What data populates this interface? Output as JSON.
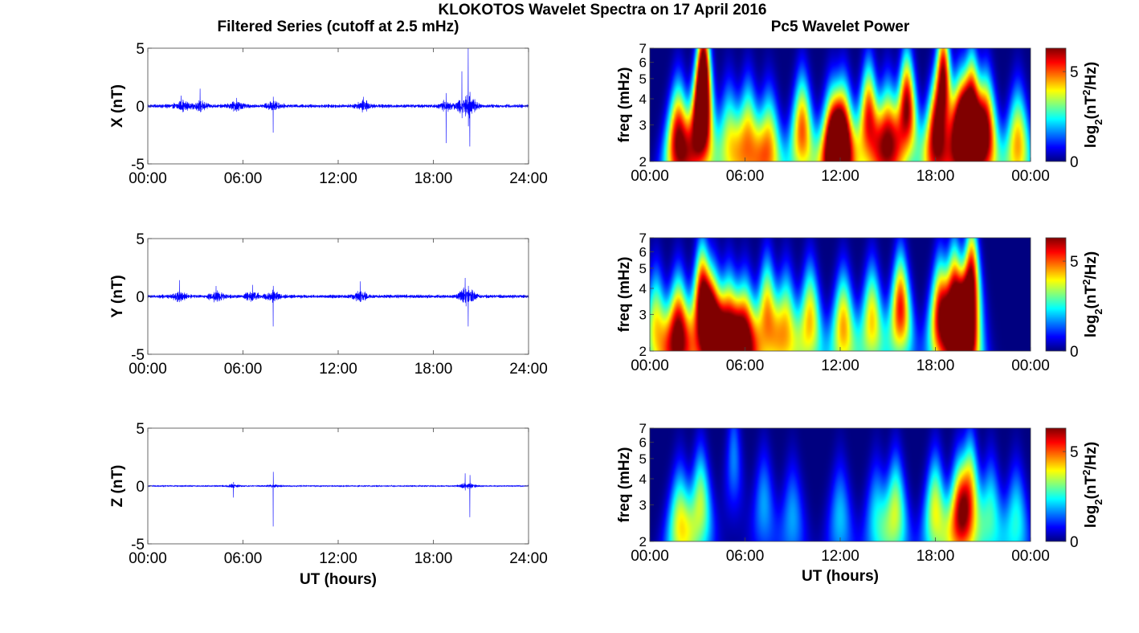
{
  "figure": {
    "title": "KLOKOTOS Wavelet Spectra on 17 April 2016",
    "left_column_title": "Filtered Series (cutoff at 2.5 mHz)",
    "right_column_title": "Pc5 Wavelet Power",
    "bottom_xlabel": "UT (hours)"
  },
  "chart_data": [
    {
      "type": "line",
      "panel": "X",
      "ylabel": "X (nT)",
      "xlim": [
        0,
        24
      ],
      "ylim": [
        -5,
        5
      ],
      "yticks": [
        -5,
        0,
        5
      ],
      "xtick_labels": [
        "00:00",
        "06:00",
        "12:00",
        "18:00",
        "24:00"
      ],
      "line_color": "#0000ff",
      "events": [
        {
          "t": 2.1,
          "amp": 0.9
        },
        {
          "t": 3.3,
          "amp": 1.5
        },
        {
          "t": 5.6,
          "amp": 0.7
        },
        {
          "t": 7.9,
          "amp": -2.3
        },
        {
          "t": 13.6,
          "amp": 0.8
        },
        {
          "t": 18.8,
          "amp": -3.2
        },
        {
          "t": 19.8,
          "amp": 3.0
        },
        {
          "t": 20.2,
          "amp": 5.0
        },
        {
          "t": 20.3,
          "amp": -3.5
        }
      ]
    },
    {
      "type": "line",
      "panel": "Y",
      "ylabel": "Y (nT)",
      "xlim": [
        0,
        24
      ],
      "ylim": [
        -5,
        5
      ],
      "yticks": [
        -5,
        0,
        5
      ],
      "xtick_labels": [
        "00:00",
        "06:00",
        "12:00",
        "18:00",
        "24:00"
      ],
      "line_color": "#0000ff",
      "events": [
        {
          "t": 2.0,
          "amp": 1.4
        },
        {
          "t": 4.3,
          "amp": 0.9
        },
        {
          "t": 6.6,
          "amp": 1.0
        },
        {
          "t": 7.9,
          "amp": -2.6
        },
        {
          "t": 13.4,
          "amp": 1.3
        },
        {
          "t": 20.0,
          "amp": 1.6
        },
        {
          "t": 20.2,
          "amp": -2.6
        }
      ]
    },
    {
      "type": "line",
      "panel": "Z",
      "ylabel": "Z (nT)",
      "xlim": [
        0,
        24
      ],
      "ylim": [
        -5,
        5
      ],
      "yticks": [
        -5,
        0,
        5
      ],
      "xtick_labels": [
        "00:00",
        "06:00",
        "12:00",
        "18:00",
        "24:00"
      ],
      "line_color": "#0000ff",
      "events": [
        {
          "t": 5.4,
          "amp": -1.0
        },
        {
          "t": 7.9,
          "amp": -3.5
        },
        {
          "t": 20.0,
          "amp": 1.1
        },
        {
          "t": 20.3,
          "amp": -2.7
        }
      ]
    },
    {
      "type": "heatmap",
      "panel": "X",
      "ylabel": "freq (mHz)",
      "yscale": "log",
      "ylim": [
        2,
        7
      ],
      "yticks": [
        2,
        3,
        4,
        5,
        6,
        7
      ],
      "xtick_labels": [
        "00:00",
        "06:00",
        "12:00",
        "18:00",
        "00:00"
      ],
      "colorbar_label": "log2(nT²/Hz)",
      "clim": [
        0,
        6.3
      ],
      "colorbar_ticks": [
        0,
        5
      ],
      "colormap": "jet",
      "bursts": [
        {
          "t": 1.8,
          "f": 2.5,
          "p": 6.3
        },
        {
          "t": 3.2,
          "f": 3.0,
          "p": 6.5
        },
        {
          "t": 3.4,
          "f": 5.5,
          "p": 6.2
        },
        {
          "t": 5.0,
          "f": 2.5,
          "p": 3.5
        },
        {
          "t": 6.2,
          "f": 2.6,
          "p": 4.2
        },
        {
          "t": 7.5,
          "f": 2.3,
          "p": 4.5
        },
        {
          "t": 9.6,
          "f": 2.8,
          "p": 5.0
        },
        {
          "t": 11.5,
          "f": 2.4,
          "p": 6.2
        },
        {
          "t": 12.2,
          "f": 2.6,
          "p": 6.0
        },
        {
          "t": 13.8,
          "f": 3.2,
          "p": 5.5
        },
        {
          "t": 15.0,
          "f": 2.5,
          "p": 5.6
        },
        {
          "t": 16.2,
          "f": 3.6,
          "p": 6.3
        },
        {
          "t": 18.0,
          "f": 2.4,
          "p": 5.5
        },
        {
          "t": 18.5,
          "f": 5.0,
          "p": 6.2
        },
        {
          "t": 19.6,
          "f": 2.8,
          "p": 6.5
        },
        {
          "t": 20.3,
          "f": 3.5,
          "p": 6.5
        },
        {
          "t": 21.2,
          "f": 2.8,
          "p": 5.8
        },
        {
          "t": 23.2,
          "f": 2.4,
          "p": 4.5
        }
      ]
    },
    {
      "type": "heatmap",
      "panel": "Y",
      "ylabel": "freq (mHz)",
      "yscale": "log",
      "ylim": [
        2,
        7
      ],
      "yticks": [
        2,
        3,
        4,
        5,
        6,
        7
      ],
      "xtick_labels": [
        "00:00",
        "06:00",
        "12:00",
        "18:00",
        "00:00"
      ],
      "colorbar_label": "log2(nT²/Hz)",
      "clim": [
        0,
        6.3
      ],
      "colorbar_ticks": [
        0,
        5
      ],
      "colormap": "jet",
      "bursts": [
        {
          "t": 0.4,
          "f": 2.6,
          "p": 4.0
        },
        {
          "t": 1.8,
          "f": 2.4,
          "p": 6.5
        },
        {
          "t": 3.3,
          "f": 3.5,
          "p": 6.3
        },
        {
          "t": 4.0,
          "f": 2.6,
          "p": 6.0
        },
        {
          "t": 5.0,
          "f": 2.5,
          "p": 5.5
        },
        {
          "t": 6.0,
          "f": 2.3,
          "p": 6.0
        },
        {
          "t": 7.4,
          "f": 3.0,
          "p": 4.5
        },
        {
          "t": 8.6,
          "f": 2.6,
          "p": 4.0
        },
        {
          "t": 10.1,
          "f": 2.8,
          "p": 4.3
        },
        {
          "t": 12.2,
          "f": 2.6,
          "p": 4.5
        },
        {
          "t": 14.0,
          "f": 2.8,
          "p": 4.2
        },
        {
          "t": 15.8,
          "f": 3.2,
          "p": 5.5
        },
        {
          "t": 18.3,
          "f": 3.0,
          "p": 5.5
        },
        {
          "t": 19.2,
          "f": 3.5,
          "p": 6.0
        },
        {
          "t": 19.9,
          "f": 2.4,
          "p": 6.5
        },
        {
          "t": 20.3,
          "f": 4.5,
          "p": 5.5
        }
      ]
    },
    {
      "type": "heatmap",
      "panel": "Z",
      "ylabel": "freq (mHz)",
      "yscale": "log",
      "ylim": [
        2,
        7
      ],
      "yticks": [
        2,
        3,
        4,
        5,
        6,
        7
      ],
      "xtick_labels": [
        "00:00",
        "06:00",
        "12:00",
        "18:00",
        "00:00"
      ],
      "colorbar_label": "log2(nT²/Hz)",
      "clim": [
        0,
        6.3
      ],
      "colorbar_ticks": [
        0,
        5
      ],
      "colormap": "jet",
      "bursts": [
        {
          "t": 1.9,
          "f": 2.4,
          "p": 3.8
        },
        {
          "t": 3.2,
          "f": 3.0,
          "p": 3.5
        },
        {
          "t": 5.3,
          "f": 5.0,
          "p": 1.6
        },
        {
          "t": 7.2,
          "f": 3.0,
          "p": 1.8
        },
        {
          "t": 9.0,
          "f": 2.6,
          "p": 1.8
        },
        {
          "t": 12.0,
          "f": 2.6,
          "p": 2.0
        },
        {
          "t": 14.3,
          "f": 2.6,
          "p": 2.2
        },
        {
          "t": 15.5,
          "f": 2.8,
          "p": 3.5
        },
        {
          "t": 18.0,
          "f": 2.8,
          "p": 3.8
        },
        {
          "t": 19.5,
          "f": 2.7,
          "p": 4.8
        },
        {
          "t": 20.2,
          "f": 3.5,
          "p": 4.0
        },
        {
          "t": 21.5,
          "f": 2.7,
          "p": 2.6
        },
        {
          "t": 23.1,
          "f": 2.5,
          "p": 2.5
        }
      ]
    }
  ]
}
